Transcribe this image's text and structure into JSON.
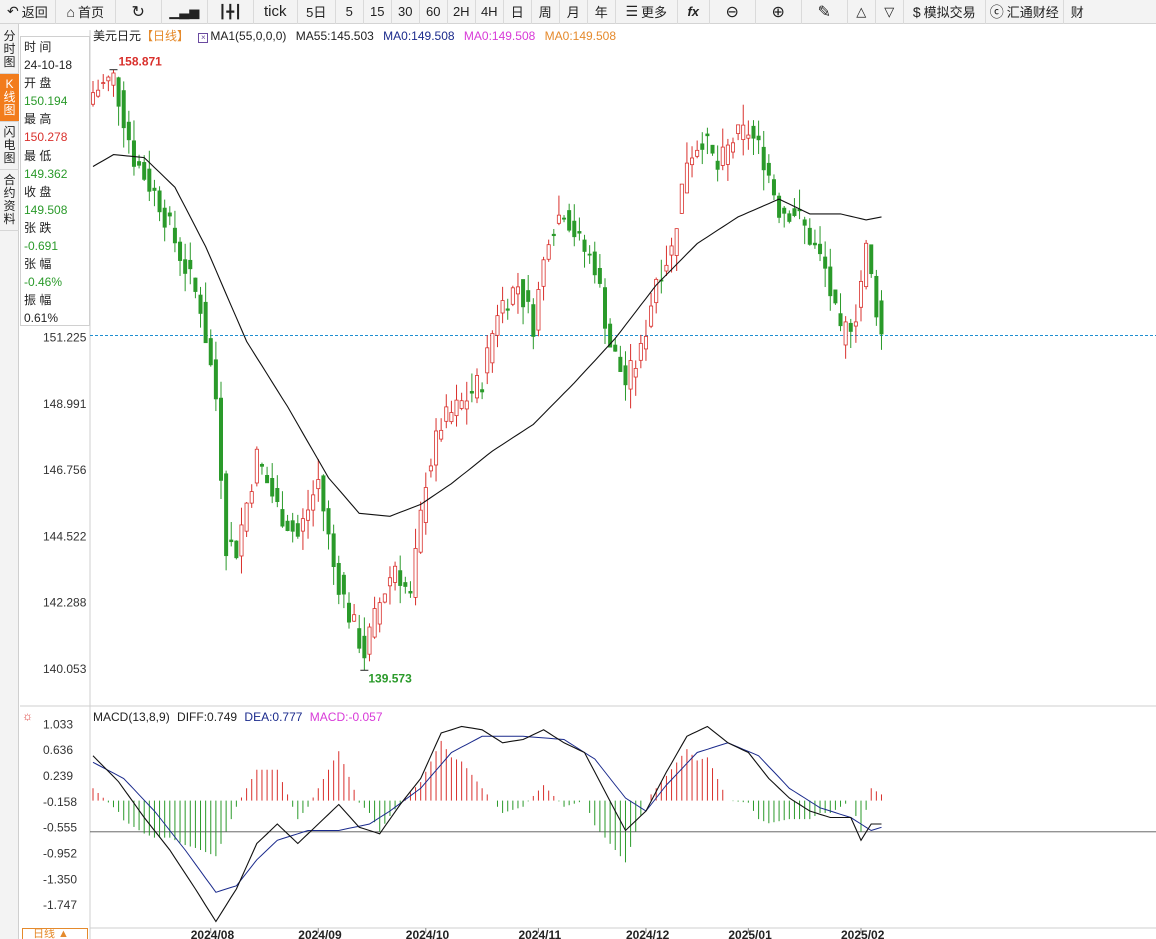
{
  "toolbar": {
    "back": "返回",
    "home": "首页",
    "tick": "tick",
    "fiveday": "5日",
    "periods": [
      "5",
      "15",
      "30",
      "60",
      "2H",
      "4H",
      "日",
      "周",
      "月",
      "年"
    ],
    "more": "更多",
    "fx": "fx",
    "simtrade": "模拟交易",
    "huitong": "汇通财经",
    "cut": "财"
  },
  "sidebar": {
    "tabs": [
      {
        "label": "分时图",
        "active": false
      },
      {
        "label": "K线图",
        "active": true
      },
      {
        "label": "闪电图",
        "active": false
      },
      {
        "label": "合约资料",
        "active": false
      }
    ]
  },
  "info": {
    "time_label": "时 间",
    "time": "24-10-18",
    "open_label": "开 盘",
    "open": "150.194",
    "high_label": "最 高",
    "high": "150.278",
    "low_label": "最 低",
    "low": "149.362",
    "close_label": "收 盘",
    "close": "149.508",
    "change_label": "张 跌",
    "change": "-0.691",
    "pct_label": "张 幅",
    "pct": "-0.46%",
    "amp_label": "振 幅",
    "amp": "0.61%"
  },
  "legend": {
    "symbol": "美元日元",
    "period": "【日线】",
    "ma1": "MA1(55,0,0,0)",
    "ma55": "MA55:145.503",
    "ma0a": "MA0:149.508",
    "ma0b": "MA0:149.508",
    "ma0c": "MA0:149.508"
  },
  "macd_legend": {
    "name": "MACD(13,8,9)",
    "diff": "DIFF:0.749",
    "dea": "DEA:0.777",
    "macd": "MACD:-0.057"
  },
  "period_tag": "日线 ▲",
  "colors": {
    "up": "#d9302c",
    "down": "#2a9a2a",
    "ma55": "#111111",
    "dea": "#1a2a8c",
    "diff": "#111111",
    "last_price": "#1f8fd1",
    "ma0a": "#1a2a8c",
    "ma0b": "#d83ad8",
    "ma0c": "#e58a2c"
  },
  "chart_data": {
    "type": "candlestick",
    "symbol": "美元日元",
    "ylim": [
      138.8,
      161.2
    ],
    "y_ticks": [
      "151.225",
      "148.991",
      "146.756",
      "144.522",
      "142.288",
      "140.053"
    ],
    "last_price": 151.3,
    "high_label": "158.871",
    "low_label": "139.573",
    "x_labels": [
      "2024/08",
      "2024/09",
      "2024/10",
      "2024/11",
      "2024/12",
      "2025/01",
      "2025/02"
    ],
    "anchors": [
      {
        "i": 0,
        "close": 159.5
      },
      {
        "i": 4,
        "close": 160.0
      },
      {
        "i": 8,
        "close": 157.3
      },
      {
        "i": 13,
        "close": 155.8
      },
      {
        "i": 18,
        "close": 153.6
      },
      {
        "i": 21,
        "close": 152.3
      },
      {
        "i": 24,
        "close": 149.2
      },
      {
        "i": 26,
        "close": 144.3
      },
      {
        "i": 28,
        "close": 144.1
      },
      {
        "i": 32,
        "close": 147.2
      },
      {
        "i": 36,
        "close": 145.5
      },
      {
        "i": 40,
        "close": 144.5
      },
      {
        "i": 44,
        "close": 146.4
      },
      {
        "i": 47,
        "close": 143.5
      },
      {
        "i": 50,
        "close": 141.9
      },
      {
        "i": 53,
        "close": 140.6
      },
      {
        "i": 56,
        "close": 142.3
      },
      {
        "i": 59,
        "close": 143.6
      },
      {
        "i": 62,
        "close": 142.4
      },
      {
        "i": 65,
        "close": 146.5
      },
      {
        "i": 68,
        "close": 148.3
      },
      {
        "i": 72,
        "close": 149.0
      },
      {
        "i": 76,
        "close": 149.8
      },
      {
        "i": 79,
        "close": 152.2
      },
      {
        "i": 83,
        "close": 153.0
      },
      {
        "i": 86,
        "close": 151.7
      },
      {
        "i": 89,
        "close": 154.8
      },
      {
        "i": 92,
        "close": 155.6
      },
      {
        "i": 95,
        "close": 154.4
      },
      {
        "i": 98,
        "close": 153.7
      },
      {
        "i": 101,
        "close": 151.0
      },
      {
        "i": 104,
        "close": 149.7
      },
      {
        "i": 107,
        "close": 150.7
      },
      {
        "i": 110,
        "close": 153.3
      },
      {
        "i": 113,
        "close": 154.2
      },
      {
        "i": 116,
        "close": 157.3
      },
      {
        "i": 119,
        "close": 158.0
      },
      {
        "i": 122,
        "close": 156.9
      },
      {
        "i": 125,
        "close": 157.9
      },
      {
        "i": 128,
        "close": 158.2
      },
      {
        "i": 131,
        "close": 157.3
      },
      {
        "i": 134,
        "close": 155.6
      },
      {
        "i": 137,
        "close": 155.5
      },
      {
        "i": 140,
        "close": 154.6
      },
      {
        "i": 143,
        "close": 153.5
      },
      {
        "i": 146,
        "close": 151.2
      },
      {
        "i": 149,
        "close": 152.1
      },
      {
        "i": 151,
        "close": 154.2
      },
      {
        "i": 154,
        "close": 151.3
      }
    ],
    "ma55": [
      {
        "i": 0,
        "v": 157.0
      },
      {
        "i": 4,
        "v": 157.4
      },
      {
        "i": 10,
        "v": 157.3
      },
      {
        "i": 16,
        "v": 156.3
      },
      {
        "i": 22,
        "v": 154.3
      },
      {
        "i": 30,
        "v": 151.1
      },
      {
        "i": 38,
        "v": 148.9
      },
      {
        "i": 46,
        "v": 146.5
      },
      {
        "i": 52,
        "v": 145.3
      },
      {
        "i": 58,
        "v": 145.2
      },
      {
        "i": 64,
        "v": 145.6
      },
      {
        "i": 70,
        "v": 146.3
      },
      {
        "i": 78,
        "v": 147.4
      },
      {
        "i": 86,
        "v": 148.3
      },
      {
        "i": 94,
        "v": 149.7
      },
      {
        "i": 102,
        "v": 151.2
      },
      {
        "i": 110,
        "v": 153.0
      },
      {
        "i": 118,
        "v": 154.4
      },
      {
        "i": 126,
        "v": 155.3
      },
      {
        "i": 134,
        "v": 155.9
      },
      {
        "i": 140,
        "v": 155.4
      },
      {
        "i": 146,
        "v": 155.4
      },
      {
        "i": 151,
        "v": 155.2
      },
      {
        "i": 154,
        "v": 155.3
      }
    ],
    "macd": {
      "ylim": [
        -2.1,
        1.1
      ],
      "y_ticks": [
        "1.033",
        "0.636",
        "0.239",
        "-0.158",
        "-0.555",
        "-0.952",
        "-1.350",
        "-1.747"
      ],
      "zero_level": -0.62,
      "diff": [
        {
          "i": 0,
          "v": 0.55
        },
        {
          "i": 5,
          "v": 0.15
        },
        {
          "i": 10,
          "v": -0.4
        },
        {
          "i": 15,
          "v": -0.9
        },
        {
          "i": 20,
          "v": -1.5
        },
        {
          "i": 24,
          "v": -2.0
        },
        {
          "i": 28,
          "v": -1.5
        },
        {
          "i": 32,
          "v": -0.8
        },
        {
          "i": 36,
          "v": -0.5
        },
        {
          "i": 40,
          "v": -0.8
        },
        {
          "i": 44,
          "v": -0.5
        },
        {
          "i": 48,
          "v": -0.2
        },
        {
          "i": 52,
          "v": -0.55
        },
        {
          "i": 56,
          "v": -0.65
        },
        {
          "i": 60,
          "v": -0.2
        },
        {
          "i": 64,
          "v": 0.2
        },
        {
          "i": 68,
          "v": 0.9
        },
        {
          "i": 72,
          "v": 1.0
        },
        {
          "i": 76,
          "v": 0.95
        },
        {
          "i": 80,
          "v": 0.75
        },
        {
          "i": 84,
          "v": 0.8
        },
        {
          "i": 88,
          "v": 0.95
        },
        {
          "i": 92,
          "v": 0.75
        },
        {
          "i": 96,
          "v": 0.6
        },
        {
          "i": 100,
          "v": 0.0
        },
        {
          "i": 104,
          "v": -0.6
        },
        {
          "i": 108,
          "v": -0.3
        },
        {
          "i": 112,
          "v": 0.3
        },
        {
          "i": 116,
          "v": 0.85
        },
        {
          "i": 120,
          "v": 1.0
        },
        {
          "i": 124,
          "v": 0.75
        },
        {
          "i": 128,
          "v": 0.6
        },
        {
          "i": 132,
          "v": 0.2
        },
        {
          "i": 136,
          "v": -0.1
        },
        {
          "i": 140,
          "v": -0.3
        },
        {
          "i": 144,
          "v": -0.4
        },
        {
          "i": 148,
          "v": -0.4
        },
        {
          "i": 150,
          "v": -0.75
        },
        {
          "i": 152,
          "v": -0.5
        },
        {
          "i": 154,
          "v": -0.5
        }
      ],
      "dea": [
        {
          "i": 0,
          "v": 0.45
        },
        {
          "i": 6,
          "v": 0.2
        },
        {
          "i": 12,
          "v": -0.3
        },
        {
          "i": 18,
          "v": -0.9
        },
        {
          "i": 24,
          "v": -1.55
        },
        {
          "i": 28,
          "v": -1.45
        },
        {
          "i": 32,
          "v": -1.05
        },
        {
          "i": 36,
          "v": -0.75
        },
        {
          "i": 42,
          "v": -0.6
        },
        {
          "i": 48,
          "v": -0.6
        },
        {
          "i": 54,
          "v": -0.5
        },
        {
          "i": 58,
          "v": -0.3
        },
        {
          "i": 64,
          "v": 0.05
        },
        {
          "i": 70,
          "v": 0.6
        },
        {
          "i": 76,
          "v": 0.85
        },
        {
          "i": 84,
          "v": 0.85
        },
        {
          "i": 92,
          "v": 0.8
        },
        {
          "i": 98,
          "v": 0.5
        },
        {
          "i": 104,
          "v": -0.1
        },
        {
          "i": 108,
          "v": -0.3
        },
        {
          "i": 112,
          "v": 0.1
        },
        {
          "i": 118,
          "v": 0.6
        },
        {
          "i": 124,
          "v": 0.75
        },
        {
          "i": 130,
          "v": 0.55
        },
        {
          "i": 136,
          "v": 0.05
        },
        {
          "i": 142,
          "v": -0.25
        },
        {
          "i": 148,
          "v": -0.4
        },
        {
          "i": 152,
          "v": -0.6
        },
        {
          "i": 154,
          "v": -0.55
        }
      ]
    }
  }
}
